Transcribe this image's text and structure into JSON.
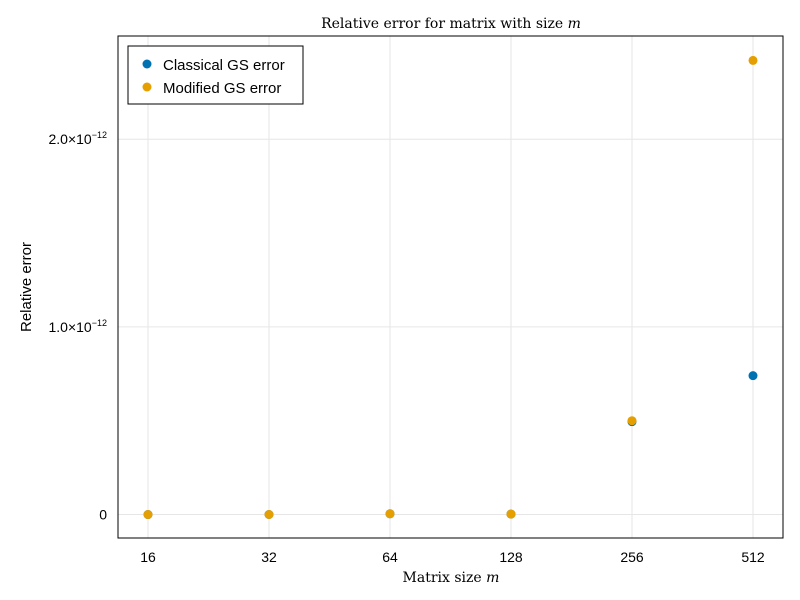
{
  "chart_data": {
    "type": "scatter",
    "title": "Relative error for matrix with size m",
    "title_prefix": "Relative error for matrix with size ",
    "title_var": "m",
    "xlabel": "Matrix size m",
    "xlabel_prefix": "Matrix size ",
    "xlabel_var": "m",
    "ylabel": "Relative error",
    "x_scale": "log2",
    "x_ticks": [
      "16",
      "32",
      "64",
      "128",
      "256",
      "512"
    ],
    "x": [
      16,
      32,
      64,
      128,
      256,
      512
    ],
    "y_ticks": [
      {
        "value": 0,
        "label": "0",
        "sup": ""
      },
      {
        "value": 1e-12,
        "label": "1.0×10",
        "sup": "−12"
      },
      {
        "value": 2e-12,
        "label": "2.0×10",
        "sup": "−12"
      }
    ],
    "ylim": [
      -1.25e-13,
      2.55e-12
    ],
    "grid": true,
    "legend_position": "top-left",
    "series": [
      {
        "name": "Classical GS error",
        "color": "#0072b2",
        "values": [
          1e-16,
          2e-16,
          4e-15,
          2.5e-15,
          4.95e-13,
          7.4e-13
        ]
      },
      {
        "name": "Modified GS error",
        "color": "#e69f00",
        "values": [
          1e-16,
          2e-16,
          4e-15,
          2.5e-15,
          5e-13,
          2.42e-12
        ]
      }
    ]
  }
}
